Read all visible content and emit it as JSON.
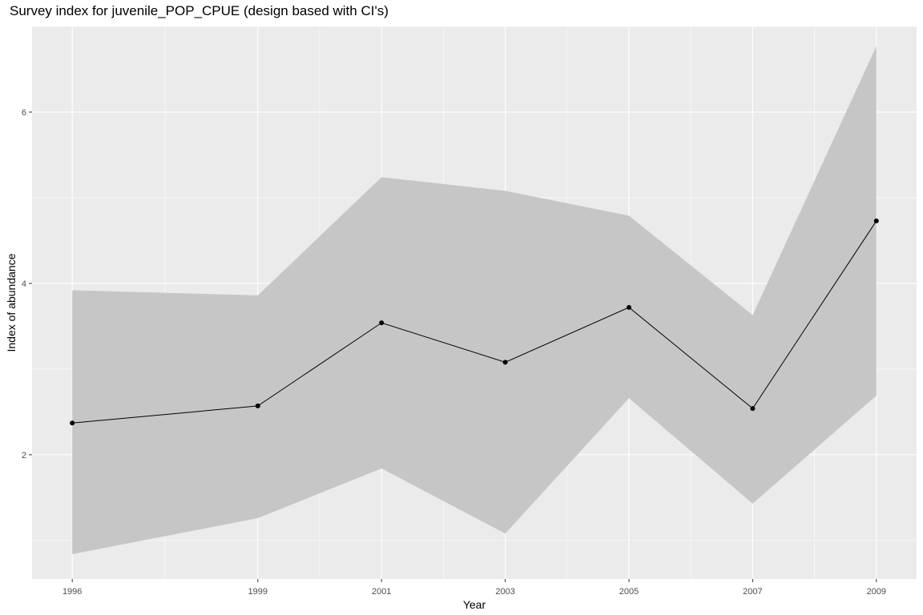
{
  "chart_data": {
    "type": "line",
    "title": "Survey index for juvenile_POP_CPUE (design based with CI's)",
    "xlabel": "Year",
    "ylabel": "Index of abundance",
    "x": [
      1996,
      1999,
      2001,
      2003,
      2005,
      2007,
      2009
    ],
    "x_tick_labels": [
      "1996",
      "1999",
      "2001",
      "2003",
      "2005",
      "2007",
      "2009"
    ],
    "y_ticks": [
      2,
      4,
      6
    ],
    "y_tick_labels": [
      "2",
      "4",
      "6"
    ],
    "xlim": [
      1995.35,
      2009.65
    ],
    "ylim": [
      0.55,
      7.0
    ],
    "series": [
      {
        "values": [
          2.37,
          2.57,
          3.54,
          3.08,
          3.72,
          2.54,
          4.73
        ]
      }
    ],
    "ci_lower": [
      0.84,
      1.26,
      1.84,
      1.08,
      2.66,
      1.43,
      2.69
    ],
    "ci_upper": [
      3.92,
      3.86,
      5.24,
      5.08,
      4.79,
      3.63,
      6.77
    ],
    "grid": true,
    "colors": {
      "panel": "#ebebeb",
      "grid": "#ffffff",
      "ribbon": "#c6c6c6",
      "line": "#000000",
      "point": "#000000"
    }
  }
}
